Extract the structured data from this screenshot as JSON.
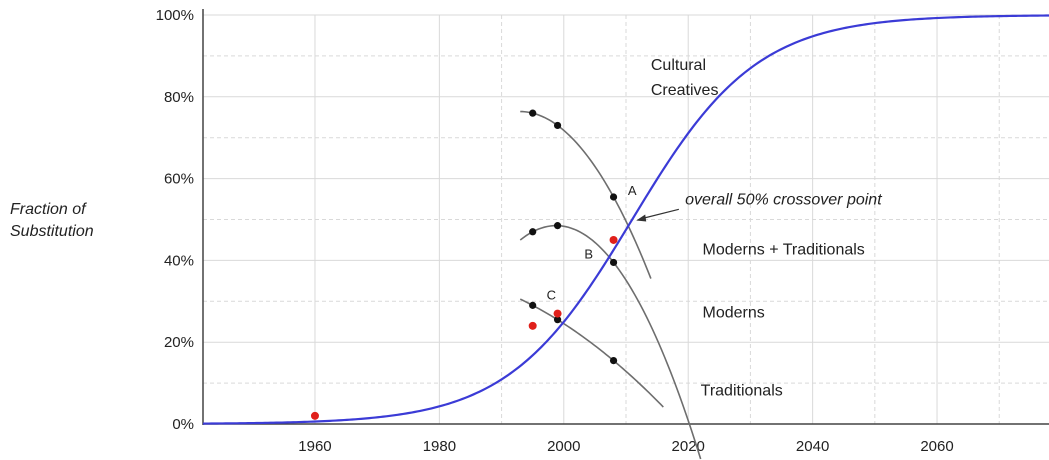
{
  "chart_data": {
    "type": "line",
    "title": "",
    "xlabel": "",
    "ylabel_lines": [
      "Fraction of",
      "Substitution"
    ],
    "xlim": [
      1942,
      2078
    ],
    "ylim": [
      0,
      100
    ],
    "x_ticks": [
      1960,
      1980,
      2000,
      2020,
      2040,
      2060
    ],
    "y_ticks": [
      0,
      20,
      40,
      60,
      80,
      100
    ],
    "y_tick_labels": [
      "0%",
      "20%",
      "40%",
      "60%",
      "80%",
      "100%"
    ],
    "grid": true,
    "logistic_curve": {
      "midpoint_year": 2011,
      "rate": 0.1,
      "color": "#3b3bd6",
      "label_lines": [
        "Cultural",
        "Creatives"
      ]
    },
    "red_points": [
      {
        "x": 1960,
        "y": 2
      },
      {
        "x": 1995,
        "y": 24
      },
      {
        "x": 1999,
        "y": 27
      },
      {
        "x": 2008,
        "y": 45
      }
    ],
    "series": [
      {
        "name": "Moderns + Traditionals",
        "points": [
          {
            "x": 1995,
            "y": 76
          },
          {
            "x": 1999,
            "y": 73
          },
          {
            "x": 2008,
            "y": 55.5
          }
        ],
        "trend_x": [
          1993,
          2014
        ]
      },
      {
        "name": "Moderns",
        "points": [
          {
            "x": 1995,
            "y": 47
          },
          {
            "x": 1999,
            "y": 48.5
          },
          {
            "x": 2008,
            "y": 39.5
          }
        ],
        "trend_x": [
          1993,
          2022
        ]
      },
      {
        "name": "Traditionals",
        "points": [
          {
            "x": 1995,
            "y": 29
          },
          {
            "x": 1999,
            "y": 25.5
          },
          {
            "x": 2008,
            "y": 15.5
          }
        ],
        "trend_x": [
          1993,
          2016
        ]
      }
    ],
    "point_labels": [
      {
        "text": "A",
        "x": 2011,
        "y": 56
      },
      {
        "text": "B",
        "x": 2004,
        "y": 40.5
      },
      {
        "text": "C",
        "x": 1998,
        "y": 30.5
      }
    ],
    "annotation": {
      "text": "overall 50% crossover point",
      "target_x": 2011,
      "target_y": 50
    },
    "colors": {
      "curve": "#3b3bd6",
      "red": "#e0201b",
      "black": "#111111",
      "trend": "#6e6e6e",
      "grid": "#d9d9d9"
    }
  }
}
